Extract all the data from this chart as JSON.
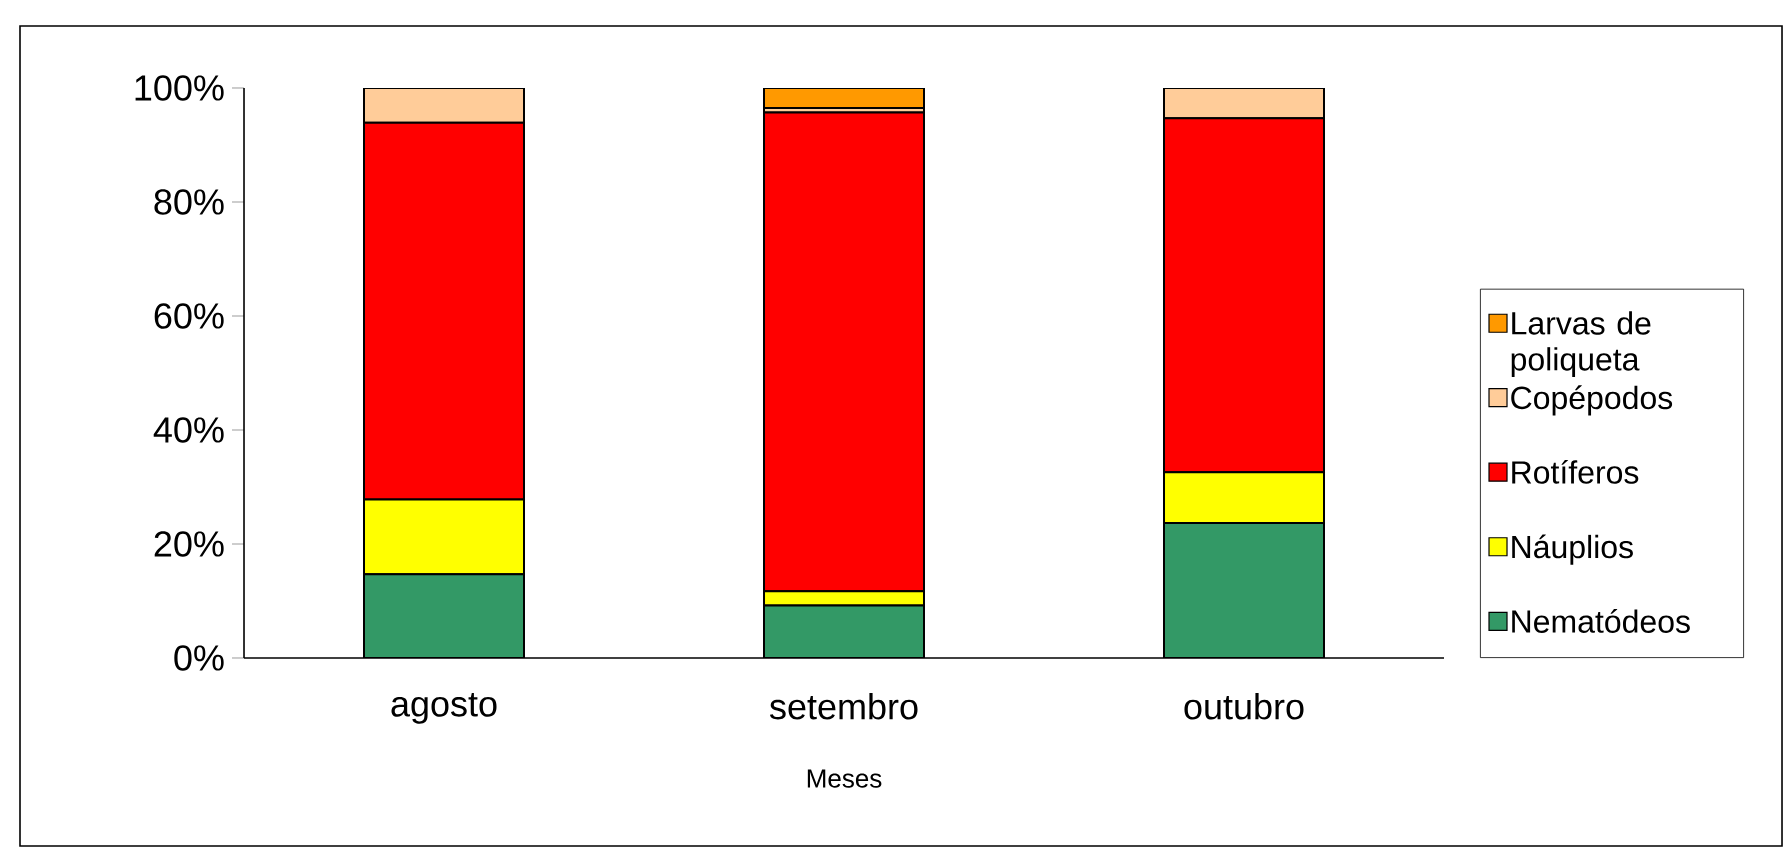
{
  "chart_data": {
    "type": "bar",
    "stacked": true,
    "xlabel": "Meses",
    "categories": [
      "agosto",
      "setembro",
      "outubro"
    ],
    "series": [
      {
        "name": "Nematódeos",
        "color": "#339966",
        "values": [
          14.7,
          9.2,
          23.7
        ]
      },
      {
        "name": "Náuplios",
        "color": "#ffff00",
        "values": [
          13.1,
          2.5,
          8.9
        ]
      },
      {
        "name": "Rotíferos",
        "color": "#ff0000",
        "values": [
          66.1,
          84.0,
          62.1
        ]
      },
      {
        "name": "Copépodos",
        "color": "#ffcc99",
        "values": [
          6.1,
          0.8,
          5.3
        ]
      },
      {
        "name": "Larvas de poliqueta",
        "color": "#ff9900",
        "values": [
          0,
          3.5,
          0
        ]
      }
    ],
    "ylim": [
      0,
      100
    ],
    "yticks": [
      {
        "value": 0,
        "label": "0%"
      },
      {
        "value": 20,
        "label": "20%"
      },
      {
        "value": 40,
        "label": "40%"
      },
      {
        "value": 60,
        "label": "60%"
      },
      {
        "value": 80,
        "label": "80%"
      },
      {
        "value": 100,
        "label": "100%"
      }
    ],
    "legend": "right"
  }
}
